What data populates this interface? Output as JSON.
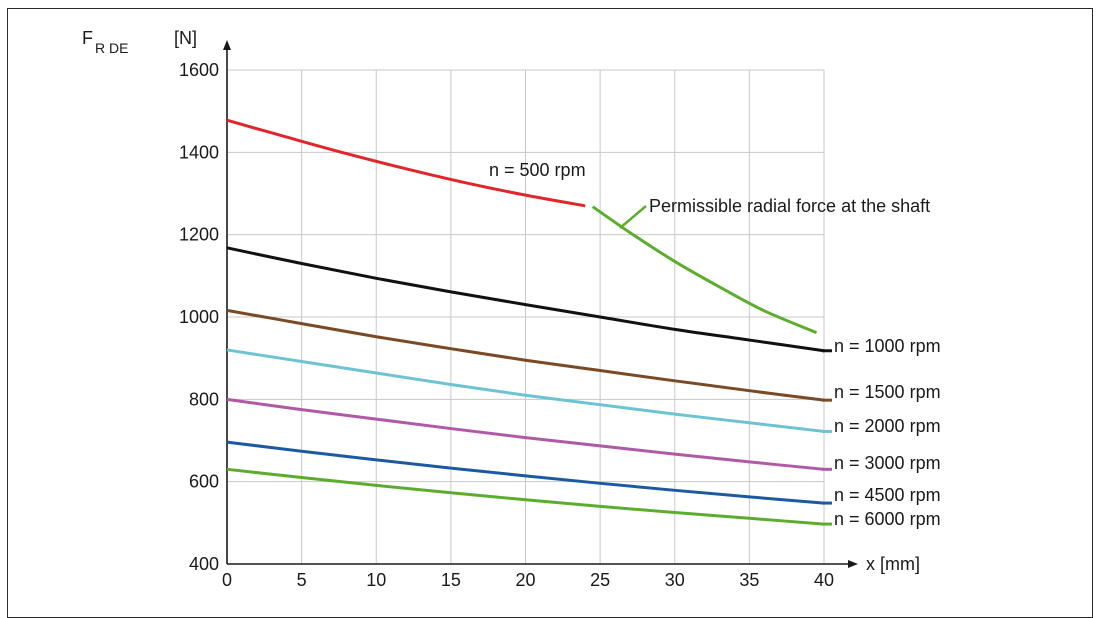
{
  "chart_data": {
    "type": "line",
    "ylabel_main": "F",
    "ylabel_sub": "R DE",
    "ylabel_unit": "[N]",
    "xlabel": "x [mm]",
    "xlim": [
      0,
      40
    ],
    "ylim": [
      400,
      1600
    ],
    "xticks": [
      0,
      5,
      10,
      15,
      20,
      25,
      30,
      35,
      40
    ],
    "yticks": [
      400,
      600,
      800,
      1000,
      1200,
      1400,
      1600
    ],
    "grid": true,
    "series": [
      {
        "name": "n = 500 rpm",
        "color": "#e0262b",
        "label_pos": "above-middle",
        "x": [
          0,
          4,
          8,
          12,
          16,
          20,
          24
        ],
        "y": [
          1478,
          1437,
          1397,
          1360,
          1326,
          1296,
          1270
        ]
      },
      {
        "name": "n = 1000 rpm",
        "color": "#111111",
        "label_pos": "end",
        "x": [
          0,
          5,
          10,
          15,
          20,
          25,
          30,
          35,
          40
        ],
        "y": [
          1168,
          1130,
          1094,
          1061,
          1030,
          1000,
          970,
          944,
          918
        ]
      },
      {
        "name": "n = 1500 rpm",
        "color": "#7a4a24",
        "label_pos": "end",
        "x": [
          0,
          5,
          10,
          15,
          20,
          25,
          30,
          35,
          40
        ],
        "y": [
          1016,
          984,
          952,
          923,
          895,
          870,
          845,
          821,
          798
        ]
      },
      {
        "name": "n = 2000 rpm",
        "color": "#6ec3d3",
        "label_pos": "end",
        "x": [
          0,
          5,
          10,
          15,
          20,
          25,
          30,
          35,
          40
        ],
        "y": [
          920,
          892,
          864,
          836,
          810,
          787,
          764,
          743,
          722
        ]
      },
      {
        "name": "n = 3000 rpm",
        "color": "#b05aa7",
        "label_pos": "end",
        "x": [
          0,
          5,
          10,
          15,
          20,
          25,
          30,
          35,
          40
        ],
        "y": [
          800,
          775,
          752,
          729,
          707,
          687,
          667,
          648,
          630
        ]
      },
      {
        "name": "n = 4500 rpm",
        "color": "#1c5aa0",
        "label_pos": "end",
        "x": [
          0,
          5,
          10,
          15,
          20,
          25,
          30,
          35,
          40
        ],
        "y": [
          696,
          674,
          653,
          633,
          614,
          596,
          579,
          563,
          548
        ]
      },
      {
        "name": "n = 6000 rpm",
        "color": "#5cad2e",
        "label_pos": "end",
        "x": [
          0,
          5,
          10,
          15,
          20,
          25,
          30,
          35,
          40
        ],
        "y": [
          630,
          610,
          591,
          573,
          556,
          540,
          525,
          511,
          497
        ]
      }
    ],
    "limit_curve": {
      "name": "Permissible radial force at the shaft",
      "color": "#5cad2e",
      "x": [
        24.5,
        27,
        30,
        33,
        36,
        39.5
      ],
      "y": [
        1268,
        1205,
        1135,
        1073,
        1015,
        962
      ]
    }
  }
}
